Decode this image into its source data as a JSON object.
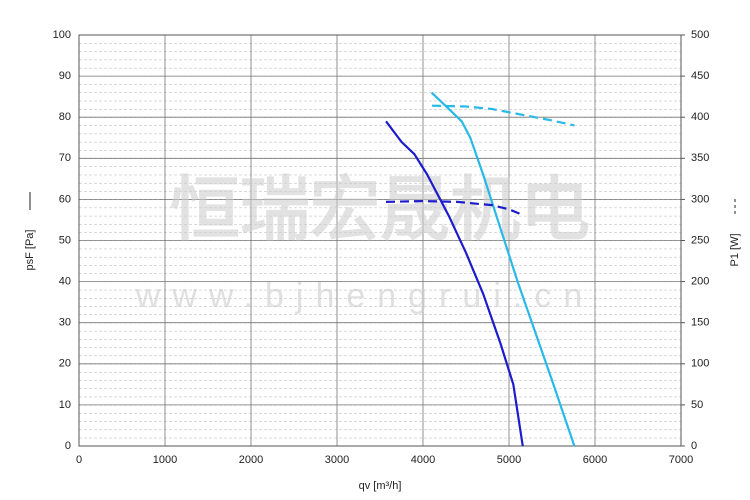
{
  "chart_data": {
    "type": "line",
    "xlabel": "qv [m³/h]",
    "ylabel": "psF [Pa]",
    "y2label": "P1 [W]",
    "annotations": [
      "恒瑞宏晟机电",
      "www.bjhengrui.cn"
    ],
    "xlim": [
      0,
      7000
    ],
    "xticks": [
      0,
      1000,
      2000,
      3000,
      4000,
      5000,
      6000,
      7000
    ],
    "ylim": [
      0,
      100
    ],
    "yticks": [
      0,
      10,
      20,
      30,
      40,
      50,
      60,
      70,
      80,
      90,
      100
    ],
    "y2lim": [
      0,
      500
    ],
    "y2ticks": [
      0,
      50,
      100,
      150,
      200,
      250,
      300,
      350,
      400,
      450,
      500
    ],
    "grid": true,
    "series": [
      {
        "color": "#1c1ccc",
        "dash": false,
        "axis": "y",
        "x": [
          3570,
          3750,
          3900,
          4050,
          4300,
          4500,
          4700,
          4900,
          5050,
          5160
        ],
        "values": [
          79,
          74,
          71,
          66,
          56,
          47,
          37,
          25,
          15,
          0
        ]
      },
      {
        "color": "#29b9e8",
        "dash": false,
        "axis": "y",
        "x": [
          4100,
          4300,
          4450,
          4550,
          4700,
          4900,
          5100,
          5300,
          5500,
          5760
        ],
        "values": [
          86,
          82,
          79,
          75,
          66,
          53,
          40,
          28,
          16,
          0
        ]
      },
      {
        "color": "#1c1ccc",
        "dash": true,
        "axis": "y2",
        "x": [
          3570,
          4000,
          4400,
          4800,
          5000,
          5160
        ],
        "values": [
          297,
          298,
          297,
          293,
          288,
          281
        ]
      },
      {
        "color": "#29b9e8",
        "dash": true,
        "axis": "y2",
        "x": [
          4105,
          4500,
          4800,
          5200,
          5500,
          5760
        ],
        "values": [
          414,
          413,
          410,
          402,
          396,
          390
        ]
      }
    ]
  }
}
